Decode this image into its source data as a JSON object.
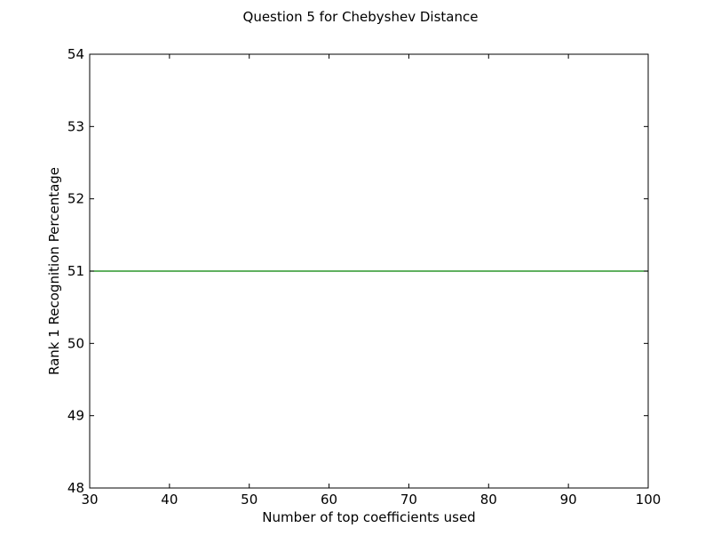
{
  "chart_data": {
    "type": "line",
    "title": "Question 5 for Chebyshev Distance",
    "xlabel": "Number of top coefficients used",
    "ylabel": "Rank 1 Recognition Percentage",
    "xlim": [
      30,
      100
    ],
    "ylim": [
      48,
      54
    ],
    "xticks": [
      "30",
      "40",
      "50",
      "60",
      "70",
      "80",
      "90",
      "100"
    ],
    "yticks": [
      "48",
      "49",
      "50",
      "51",
      "52",
      "53",
      "54"
    ],
    "grid": false,
    "series": [
      {
        "color": "#008000",
        "x": [
          30,
          40,
          50,
          60,
          70,
          80,
          90,
          100
        ],
        "y": [
          51,
          51,
          51,
          51,
          51,
          51,
          51,
          51
        ]
      }
    ]
  }
}
